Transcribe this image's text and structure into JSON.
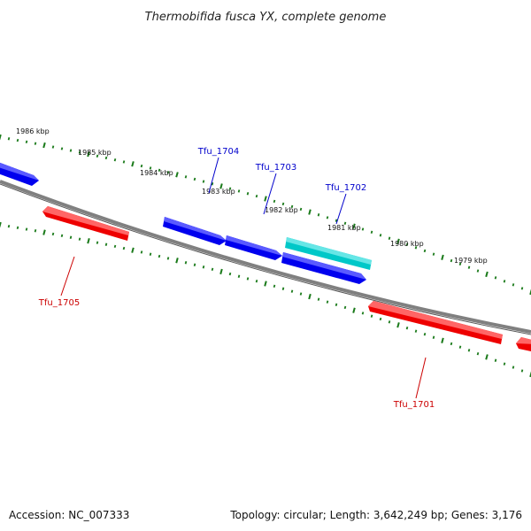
{
  "title": "Thermobifida fusca YX, complete genome",
  "footer": {
    "accession": "Accession: NC_007333",
    "stats": "Topology: circular; Length: 3,642,249 bp; Genes: 3,176"
  },
  "colors": {
    "forward": "#0000ee",
    "forward_highlight": "#00c8c8",
    "reverse": "#ee0000",
    "backbone": "#808080",
    "ticks": "#1a7a1a"
  },
  "kbp_labels": [
    "1986 kbp",
    "1985 kbp",
    "1984 kbp",
    "1983 kbp",
    "1982 kbp",
    "1981 kbp",
    "1980 kbp",
    "1979 kbp"
  ],
  "genes": [
    {
      "id": "Tfu_1705",
      "label": "Tfu_1705",
      "strand": "reverse"
    },
    {
      "id": "Tfu_1704",
      "label": "Tfu_1704",
      "strand": "forward"
    },
    {
      "id": "Tfu_1703",
      "label": "Tfu_1703",
      "strand": "forward"
    },
    {
      "id": "Tfu_1702",
      "label": "Tfu_1702",
      "strand": "forward",
      "highlighted": true
    },
    {
      "id": "Tfu_1701",
      "label": "Tfu_1701",
      "strand": "reverse"
    }
  ]
}
